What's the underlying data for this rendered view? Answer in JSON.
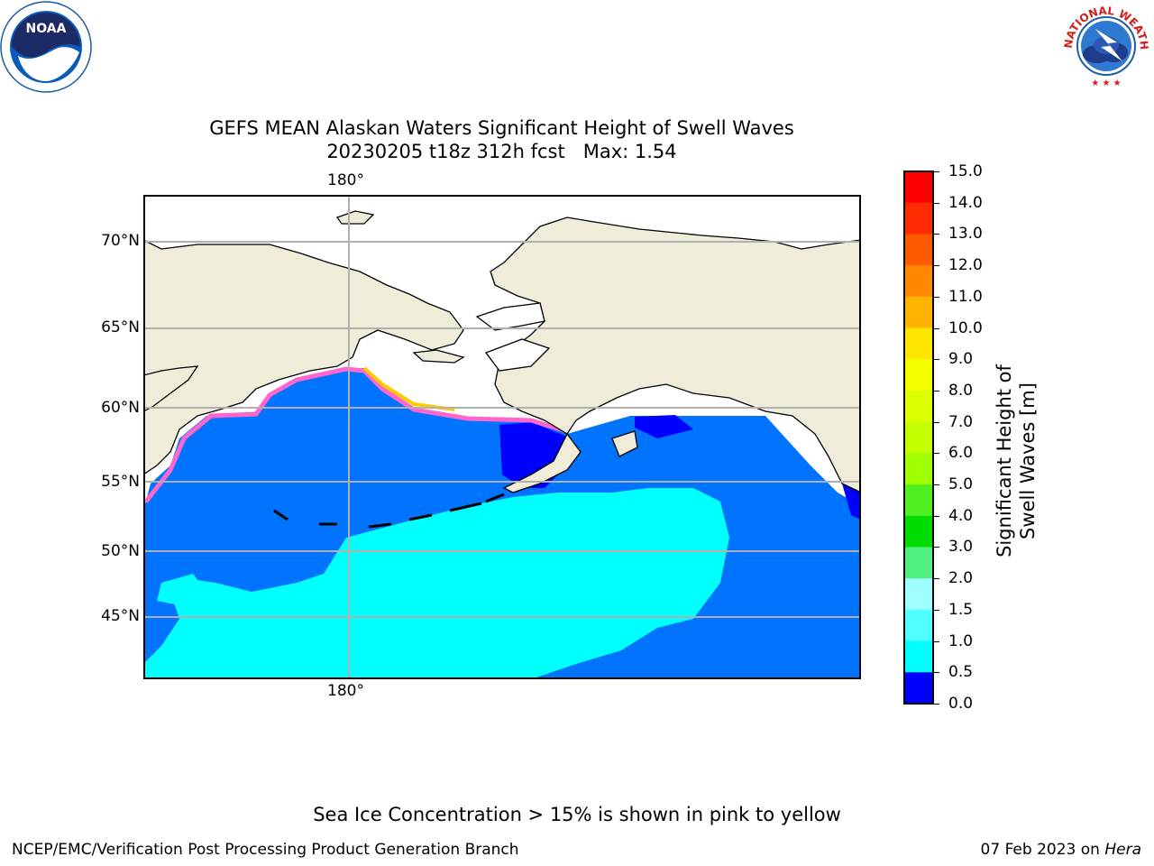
{
  "title": {
    "line1": "GEFS MEAN Alaskan Waters Significant Height of Swell Waves",
    "line2": "20230205 t18z 312h fcst   Max: 1.54"
  },
  "map": {
    "lon_label_top": "180°",
    "lon_label_bottom": "180°",
    "lat_labels": [
      "70°N",
      "65°N",
      "60°N",
      "55°N",
      "50°N",
      "45°N"
    ],
    "colors": {
      "land": "#efedda",
      "ice_open": "#ffffff",
      "swell_0_0p5": "#0000ff",
      "swell_0p5_1": "#0073ff",
      "swell_1_1p5": "#00ffff",
      "ice_pink": "#ff66cc",
      "ice_yellow": "#ffcc00"
    }
  },
  "colorbar": {
    "title": "Significant Height of Swell Waves [m]",
    "ticks": [
      "15.0",
      "14.0",
      "13.0",
      "12.0",
      "11.0",
      "10.0",
      "9.0",
      "8.0",
      "7.0",
      "6.0",
      "5.0",
      "4.0",
      "3.0",
      "2.0",
      "1.5",
      "1.0",
      "0.5",
      "0.0"
    ],
    "colors": [
      "#ff0000",
      "#ff2a00",
      "#ff5a00",
      "#ff8800",
      "#ffb400",
      "#ffe600",
      "#f5ff00",
      "#dcff00",
      "#c3ff00",
      "#a0ff00",
      "#50f020",
      "#00dc00",
      "#50f080",
      "#a0ffff",
      "#50ffff",
      "#00ffff",
      "#0073ff",
      "#0000ff"
    ]
  },
  "logos": {
    "noaa_text": "NOAA",
    "nws_text": "NATIONAL WEATHER SERVICE"
  },
  "notes": {
    "ice": "Sea Ice Concentration > 15% is shown in pink to yellow"
  },
  "footer": {
    "left": "NCEP/EMC/Verification Post Processing Product Generation Branch",
    "date": "07 Feb 2023 on ",
    "machine": "Hera"
  }
}
